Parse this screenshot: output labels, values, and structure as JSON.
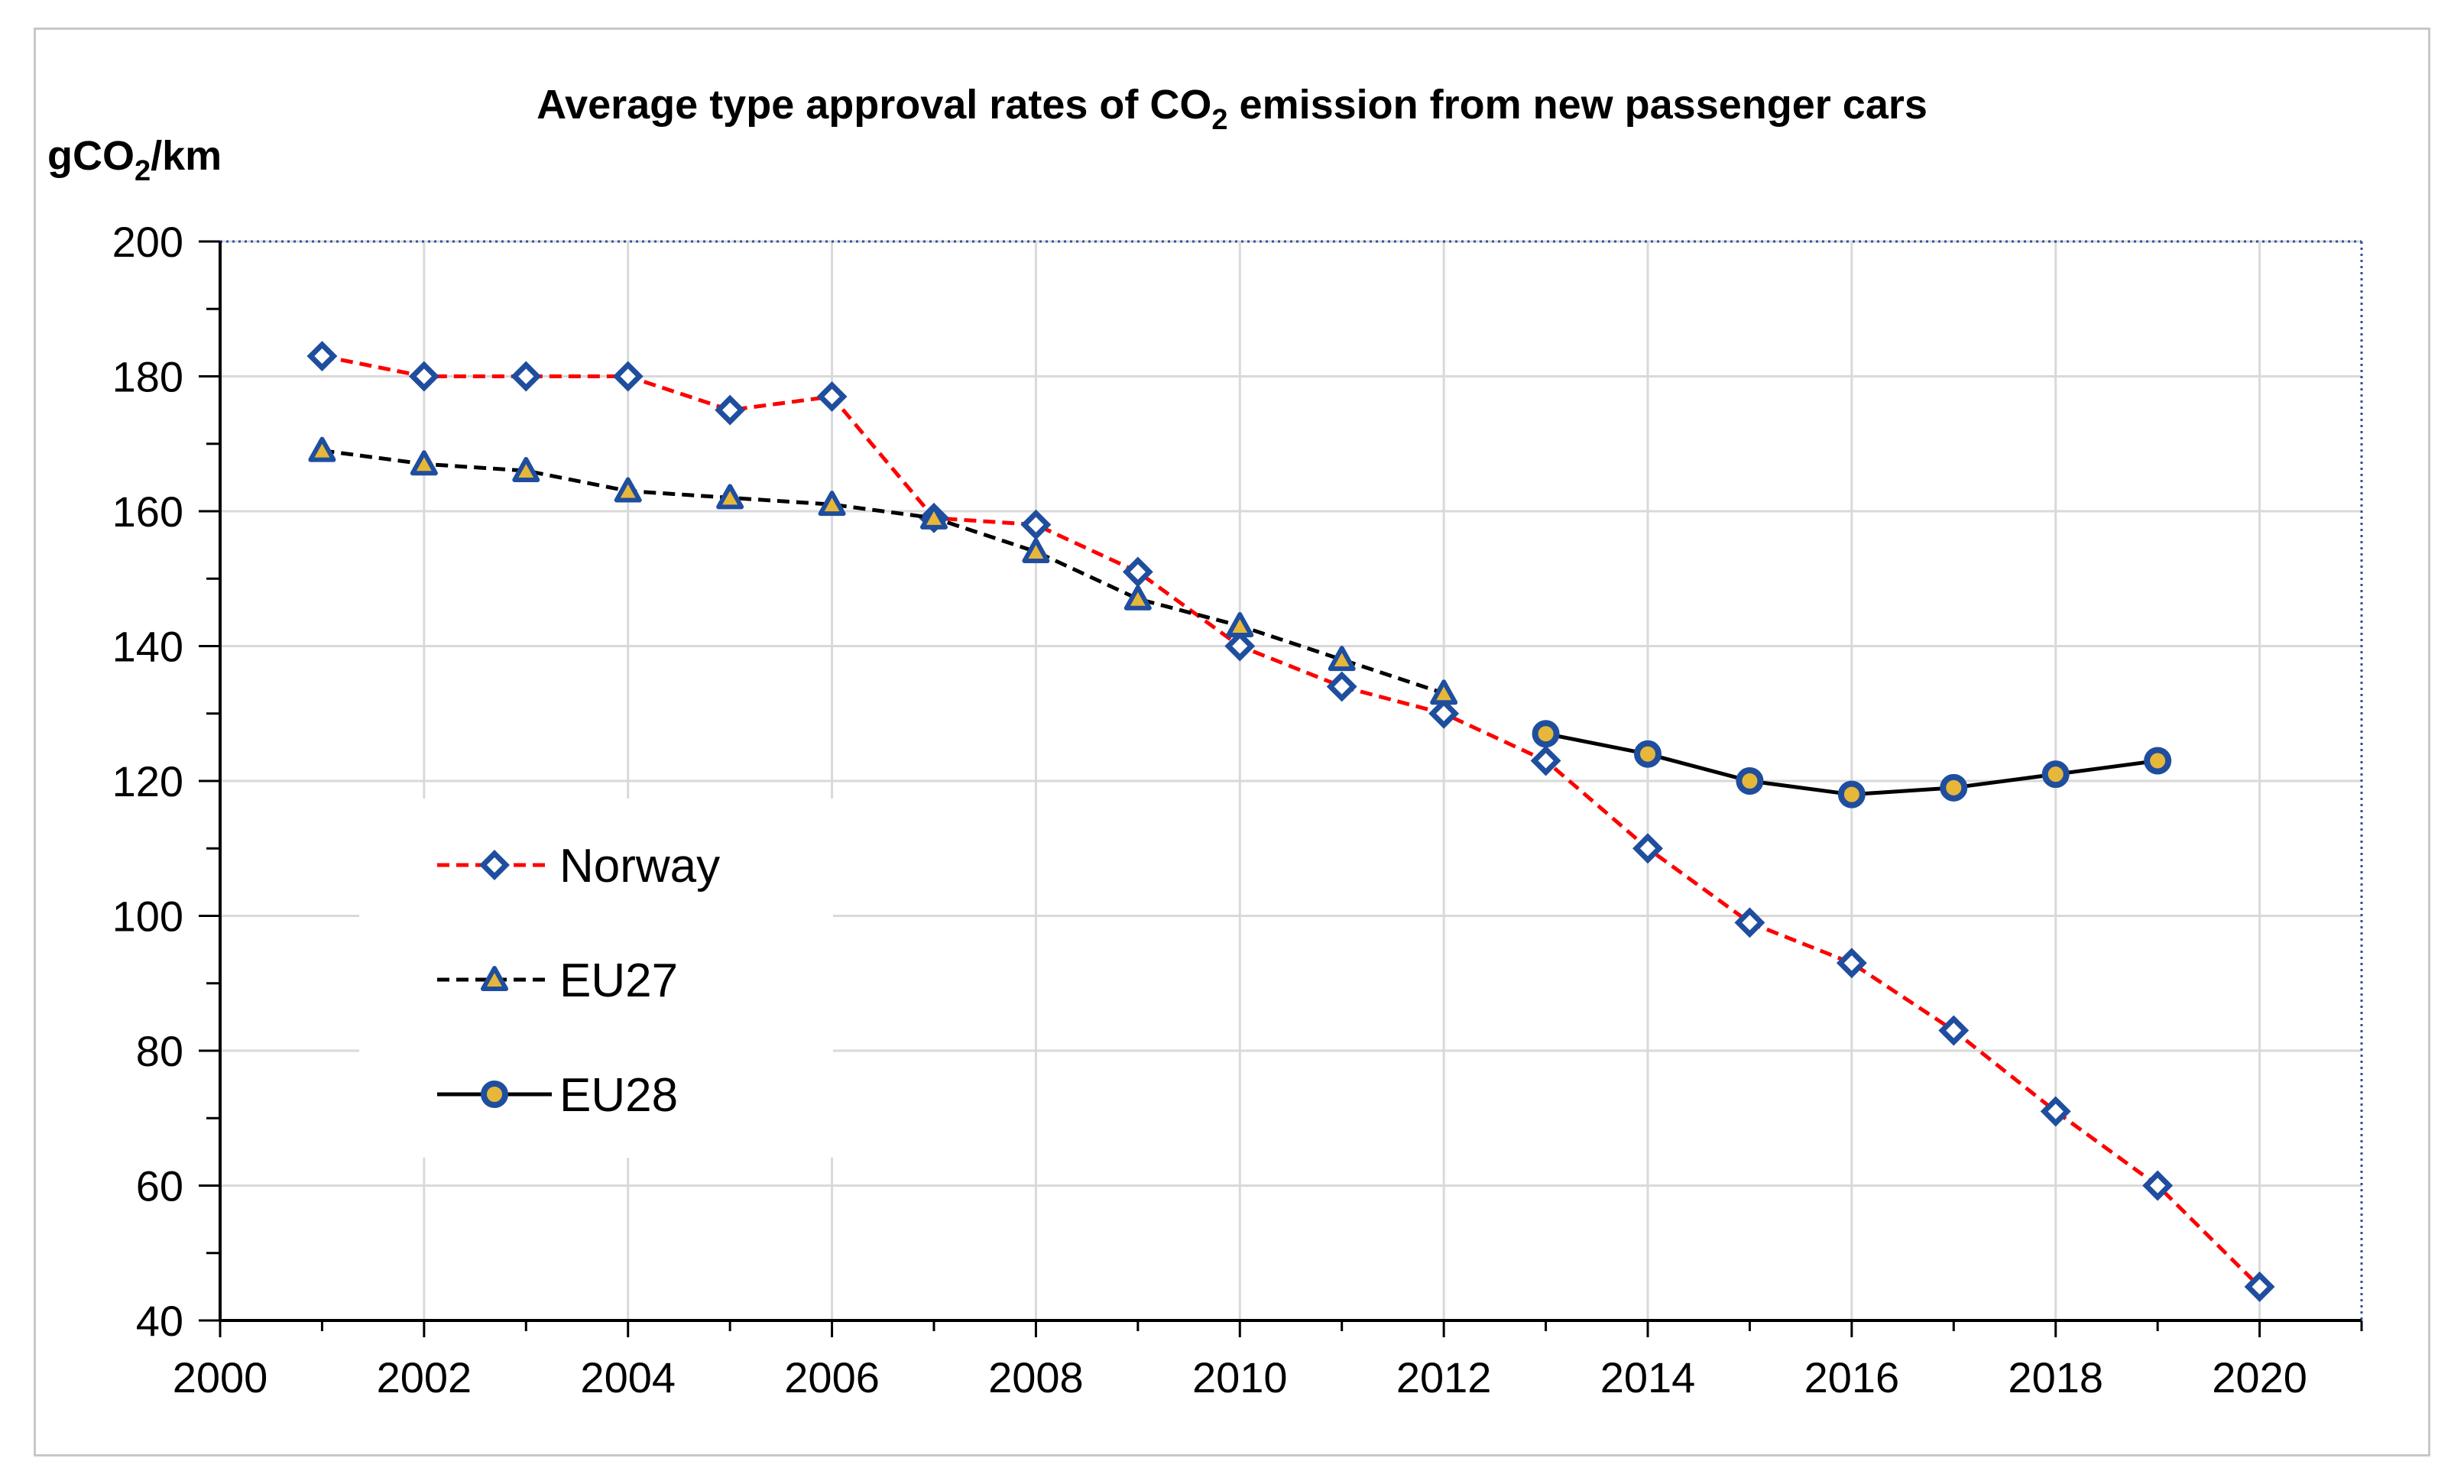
{
  "chart_data": {
    "type": "line",
    "title": "Average type approval rates of CO2 emission from new passenger cars",
    "title_parts": {
      "pre": "Average type approval rates of CO",
      "sub": "2",
      "post": " emission from new passenger cars"
    },
    "ylabel": "gCO2/km",
    "ylabel_parts": {
      "pre": "gCO",
      "sub": "2",
      "post": "/km"
    },
    "xlabel": "",
    "xlim": [
      2000,
      2021
    ],
    "ylim": [
      40,
      200
    ],
    "x_ticks": [
      2000,
      2002,
      2004,
      2006,
      2008,
      2010,
      2012,
      2014,
      2016,
      2018,
      2020
    ],
    "y_ticks": [
      40,
      60,
      80,
      100,
      120,
      140,
      160,
      180,
      200
    ],
    "grid": true,
    "legend_position": "center-left",
    "series": [
      {
        "name": "Norway",
        "color": "#ff0000",
        "marker_color": "#1f4e9e",
        "line_style": "dashed",
        "marker": "diamond",
        "x": [
          2001,
          2002,
          2003,
          2004,
          2005,
          2006,
          2007,
          2008,
          2009,
          2010,
          2011,
          2012,
          2013,
          2014,
          2015,
          2016,
          2017,
          2018,
          2019,
          2020
        ],
        "values": [
          183,
          180,
          180,
          180,
          175,
          177,
          159,
          158,
          151,
          140,
          134,
          130,
          123,
          110,
          99,
          93,
          83,
          71,
          60,
          45
        ]
      },
      {
        "name": "EU27",
        "color": "#000000",
        "marker_color": "#1f4e9e",
        "marker_fill": "#e7b73a",
        "line_style": "dashed",
        "marker": "triangle",
        "x": [
          2001,
          2002,
          2003,
          2004,
          2005,
          2006,
          2007,
          2008,
          2009,
          2010,
          2011,
          2012
        ],
        "values": [
          169,
          167,
          166,
          163,
          162,
          161,
          159,
          154,
          147,
          143,
          138,
          133
        ]
      },
      {
        "name": "EU28",
        "color": "#000000",
        "marker_color": "#1f4e9e",
        "marker_fill": "#e7b73a",
        "line_style": "solid",
        "marker": "circle",
        "x": [
          2013,
          2014,
          2015,
          2016,
          2017,
          2018,
          2019
        ],
        "values": [
          127,
          124,
          120,
          118,
          119,
          121,
          123
        ]
      }
    ]
  }
}
